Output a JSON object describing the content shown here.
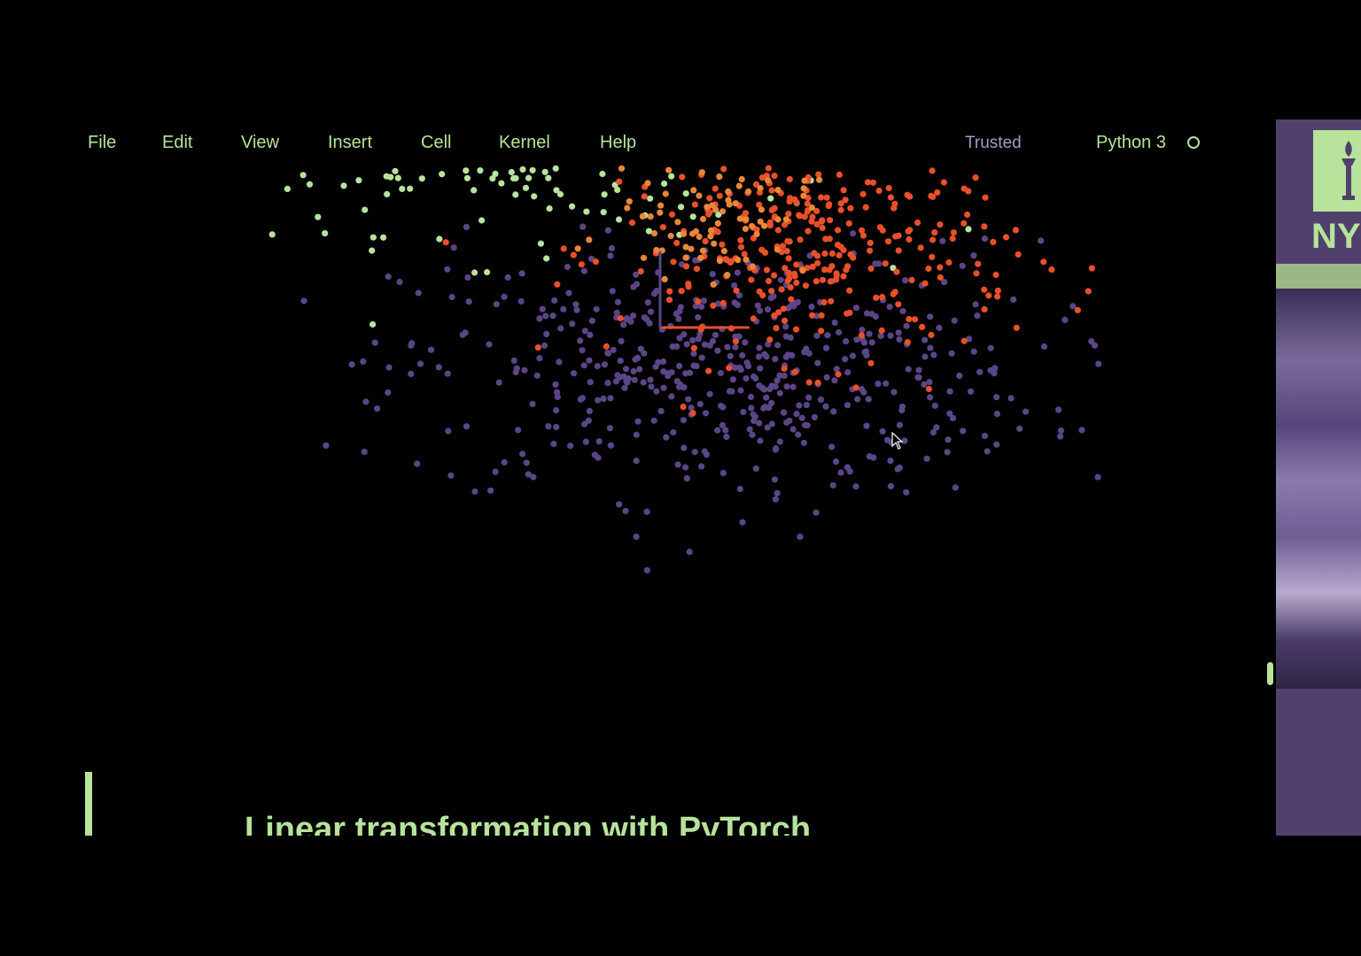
{
  "menubar": {
    "items": [
      {
        "id": "file",
        "label": "File"
      },
      {
        "id": "edit",
        "label": "Edit"
      },
      {
        "id": "view",
        "label": "View"
      },
      {
        "id": "insert",
        "label": "Insert"
      },
      {
        "id": "cell",
        "label": "Cell"
      },
      {
        "id": "kernel",
        "label": "Kernel"
      },
      {
        "id": "help",
        "label": "Help"
      }
    ],
    "trusted": "Trusted",
    "kernel_name": "Python 3"
  },
  "markdown_cell": {
    "heading": "Linear transformation with PyTorch"
  },
  "side_panel": {
    "logo_text": "NY"
  },
  "colors": {
    "background": "#000000",
    "accent_green": "#b7e39a",
    "purple": "#5b4587",
    "orange_red": "#e8502a",
    "orange": "#e8873a",
    "trusted_text": "#a79ac9",
    "panel": "#51406e"
  },
  "chart_data": {
    "type": "scatter",
    "title": "",
    "xlabel": "",
    "ylabel": "",
    "xlim": [
      -1,
      1
    ],
    "ylim": [
      -1,
      1
    ],
    "grid": false,
    "series": [
      {
        "color": "#b7e39a",
        "center": [
          -0.25,
          0.55
        ],
        "spread": [
          0.32,
          0.16
        ],
        "count": 520
      },
      {
        "color": "#5b4587",
        "center": [
          0.12,
          -0.1
        ],
        "spread": [
          0.32,
          0.15
        ],
        "count": 520
      },
      {
        "color": "#e8502a",
        "center": [
          0.32,
          0.18
        ],
        "spread": [
          0.2,
          0.13
        ],
        "count": 320
      },
      {
        "color": "#e8873a",
        "center": [
          0.1,
          0.28
        ],
        "spread": [
          0.1,
          0.08
        ],
        "count": 90
      }
    ],
    "axes_vectors": [
      {
        "color": "#e8502a",
        "dx": 0.18,
        "dy": 0
      },
      {
        "color": "#5b4587",
        "dx": 0,
        "dy": 0.18
      }
    ]
  }
}
